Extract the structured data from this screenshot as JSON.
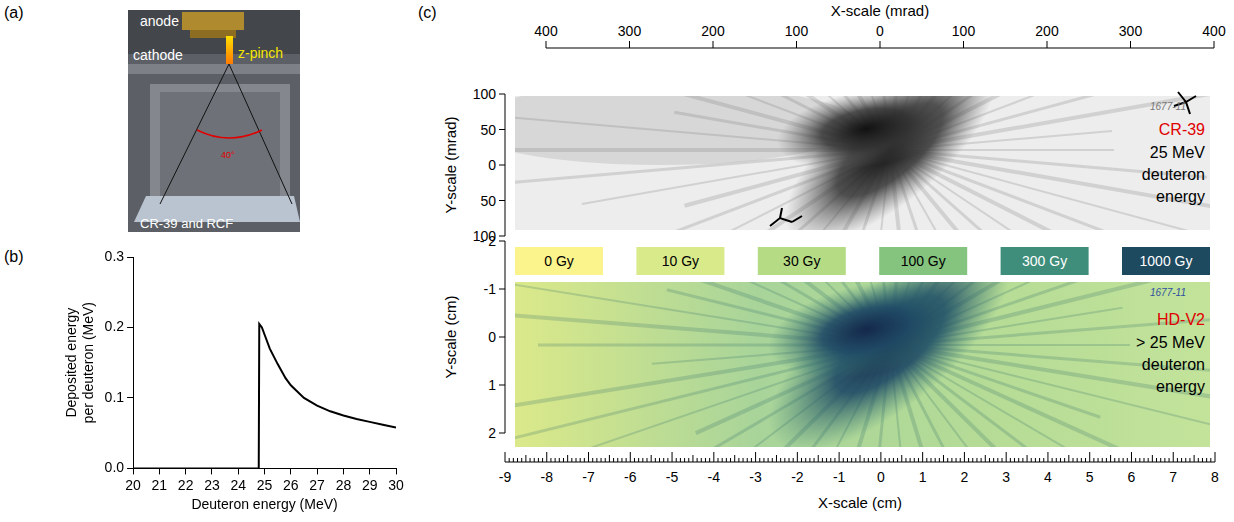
{
  "panel_a": {
    "letter": "(a)",
    "anode": "anode",
    "cathode": "cathode",
    "pinch": "z-pinch",
    "detector": "CR-39 and RCF",
    "angle": "40°"
  },
  "chart_data": {
    "letter": "(b)",
    "type": "line",
    "x_label": "Deuteron energy (MeV)",
    "y_label": "Deposited energy per deuteron (MeV)",
    "x": [
      20,
      24.78,
      24.8,
      24.9,
      25,
      25.2,
      25.5,
      25.8,
      26,
      26.5,
      27,
      27.5,
      28,
      28.5,
      29,
      29.5,
      30
    ],
    "values": [
      0,
      0,
      0.205,
      0.2,
      0.19,
      0.17,
      0.148,
      0.128,
      0.118,
      0.1,
      0.089,
      0.081,
      0.075,
      0.07,
      0.066,
      0.062,
      0.058
    ],
    "color": "#000000",
    "xlim": [
      20,
      30
    ],
    "xticks": [
      20,
      21,
      22,
      23,
      24,
      25,
      26,
      27,
      28,
      29,
      30
    ],
    "ylim": [
      0,
      0.3
    ],
    "yticks": [
      {
        "value": 0,
        "label": "0.0"
      },
      {
        "value": 0.1,
        "label": "0.1"
      },
      {
        "value": 0.2,
        "label": "0.2"
      },
      {
        "value": 0.3,
        "label": "0.3"
      }
    ],
    "grid": false
  },
  "panel_c": {
    "letter": "(c)",
    "top_axis": {
      "label": "X-scale (mrad)",
      "lim": [
        -400,
        400
      ],
      "ticks": [
        {
          "value": -400,
          "label": "400"
        },
        {
          "value": -300,
          "label": "300"
        },
        {
          "value": -200,
          "label": "200"
        },
        {
          "value": -100,
          "label": "100"
        },
        0,
        100,
        200,
        300,
        400
      ]
    },
    "upper_left_axis": {
      "label": "Y-scale (mrad)",
      "lim": [
        -100,
        100
      ],
      "ticks": [
        100,
        50,
        0,
        {
          "value": -50,
          "label": "50"
        },
        {
          "value": -100,
          "label": "100"
        }
      ]
    },
    "cr39": {
      "material": "CR-39",
      "energy": "25 MeV deuteron energy",
      "sample": "1677-11"
    },
    "colorbar": [
      {
        "value": 0,
        "label": "0 Gy",
        "color": "#fbf38c"
      },
      {
        "value": 10,
        "label": "10 Gy",
        "color": "#d8ea8a"
      },
      {
        "value": 30,
        "label": "30 Gy",
        "color": "#b5dc84"
      },
      {
        "value": 100,
        "label": "100 Gy",
        "color": "#84c47e"
      },
      {
        "value": 300,
        "label": "300 Gy",
        "color": "#3e8e7b"
      },
      {
        "value": 1000,
        "label": "1000 Gy",
        "color": "#1e4a5f"
      }
    ],
    "rcf": {
      "material": "HD-V2",
      "energy": "> 25 MeV deuteron energy",
      "sample": "1677-11"
    },
    "lower_left_axis": {
      "label": "Y-scale (cm)",
      "lim": [
        -2,
        2
      ],
      "ticks": [
        {
          "value": -2,
          "label": "- 2"
        },
        -1,
        0,
        1,
        2
      ]
    },
    "bottom_axis": {
      "label": "X-scale (cm)",
      "lim": [
        -9,
        8
      ],
      "ticks": [
        -9,
        -8,
        -7,
        -6,
        -5,
        -4,
        -3,
        -2,
        -1,
        0,
        1,
        2,
        3,
        4,
        5,
        6,
        7,
        8
      ]
    }
  }
}
